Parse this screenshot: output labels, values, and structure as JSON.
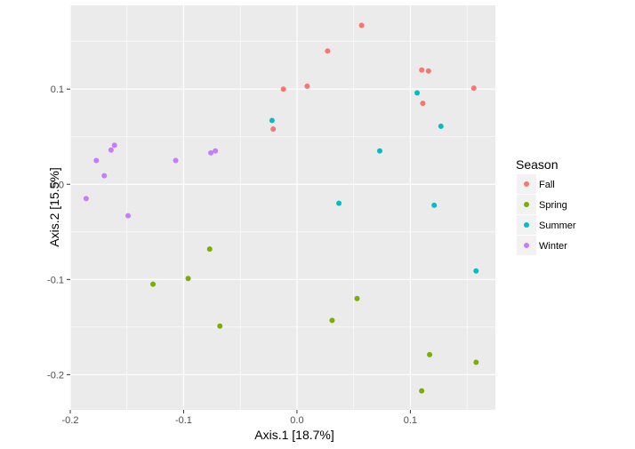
{
  "chart_data": {
    "type": "scatter",
    "title": "",
    "xlabel": "Axis.1   [18.7%]",
    "ylabel": "Axis.2   [15.5%]",
    "xlim": [
      -0.2,
      0.175
    ],
    "ylim": [
      -0.237,
      0.188
    ],
    "x_ticks": [
      -0.2,
      -0.1,
      0.0,
      0.1
    ],
    "x_tick_labels": [
      "-0.2",
      "-0.1",
      "0.0",
      "0.1"
    ],
    "y_ticks": [
      -0.2,
      -0.1,
      0.0,
      0.1
    ],
    "y_tick_labels": [
      "-0.2",
      "-0.1",
      "0.0",
      "0.1"
    ],
    "grid": true,
    "legend": {
      "title": "Season",
      "position": "right"
    },
    "series": [
      {
        "name": "Fall",
        "color": "#F8766D",
        "points": [
          {
            "x": 0.057,
            "y": 0.167
          },
          {
            "x": 0.027,
            "y": 0.14
          },
          {
            "x": 0.11,
            "y": 0.12
          },
          {
            "x": 0.116,
            "y": 0.119
          },
          {
            "x": 0.009,
            "y": 0.103
          },
          {
            "x": -0.012,
            "y": 0.1
          },
          {
            "x": 0.156,
            "y": 0.101
          },
          {
            "x": 0.111,
            "y": 0.085
          },
          {
            "x": -0.021,
            "y": 0.058
          }
        ]
      },
      {
        "name": "Spring",
        "color": "#7CAE00",
        "points": [
          {
            "x": -0.077,
            "y": -0.068
          },
          {
            "x": -0.127,
            "y": -0.105
          },
          {
            "x": -0.096,
            "y": -0.099
          },
          {
            "x": -0.068,
            "y": -0.149
          },
          {
            "x": 0.053,
            "y": -0.12
          },
          {
            "x": 0.031,
            "y": -0.143
          },
          {
            "x": 0.117,
            "y": -0.179
          },
          {
            "x": 0.158,
            "y": -0.187
          },
          {
            "x": 0.11,
            "y": -0.217
          }
        ]
      },
      {
        "name": "Summer",
        "color": "#00BFC4",
        "points": [
          {
            "x": 0.106,
            "y": 0.096
          },
          {
            "x": -0.022,
            "y": 0.067
          },
          {
            "x": 0.127,
            "y": 0.061
          },
          {
            "x": 0.073,
            "y": 0.035
          },
          {
            "x": 0.037,
            "y": -0.02
          },
          {
            "x": 0.121,
            "y": -0.022
          },
          {
            "x": 0.158,
            "y": -0.091
          }
        ]
      },
      {
        "name": "Winter",
        "color": "#C77CFF",
        "points": [
          {
            "x": -0.161,
            "y": 0.041
          },
          {
            "x": -0.164,
            "y": 0.036
          },
          {
            "x": -0.177,
            "y": 0.025
          },
          {
            "x": -0.17,
            "y": 0.009
          },
          {
            "x": -0.107,
            "y": 0.025
          },
          {
            "x": -0.072,
            "y": 0.035
          },
          {
            "x": -0.076,
            "y": 0.033
          },
          {
            "x": -0.186,
            "y": -0.015
          },
          {
            "x": -0.149,
            "y": -0.033
          }
        ]
      }
    ],
    "style": {
      "panel_background": "#EBEBEB",
      "grid_color": "#FFFFFF",
      "legend_key_background": "#F2F2F2"
    }
  }
}
